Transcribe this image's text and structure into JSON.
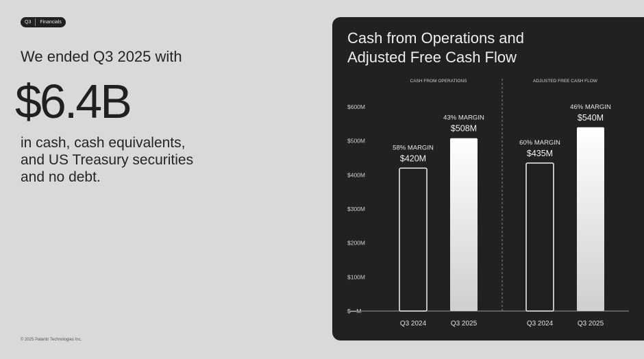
{
  "tag": {
    "left": "Q3",
    "right": "Financials"
  },
  "intro": "We ended Q3 2025 with",
  "headline_value": "$6.4B",
  "description": [
    "in cash, cash equivalents,",
    "and US Treasury securities",
    "and no debt."
  ],
  "footer": "© 2025 Palantir Technologies Inc.",
  "colors": {
    "background": "#d9d9d9",
    "panel": "#1f2123",
    "text_dark": "#1e2022",
    "text_light": "#eeeeee"
  },
  "chart_data": {
    "type": "bar",
    "title": [
      "Cash from Operations and",
      "Adjusted Free Cash Flow"
    ],
    "ylim": [
      0,
      600
    ],
    "yticks": [
      0,
      100,
      200,
      300,
      400,
      500,
      600
    ],
    "ytick_labels": [
      "$—M",
      "$100M",
      "$200M",
      "$300M",
      "$400M",
      "$500M",
      "$600M"
    ],
    "groups": [
      {
        "name": "CASH FROM OPERATIONS",
        "categories": [
          "Q3 2024",
          "Q3 2025"
        ],
        "values": [
          420,
          508
        ],
        "value_labels": [
          "$420M",
          "$508M"
        ],
        "margin_labels": [
          "58% MARGIN",
          "43% MARGIN"
        ]
      },
      {
        "name": "ADJUSTED FREE CASH FLOW",
        "categories": [
          "Q3 2024",
          "Q3 2025"
        ],
        "values": [
          435,
          540
        ],
        "value_labels": [
          "$435M",
          "$540M"
        ],
        "margin_labels": [
          "60% MARGIN",
          "46% MARGIN"
        ]
      }
    ],
    "grid": false
  }
}
